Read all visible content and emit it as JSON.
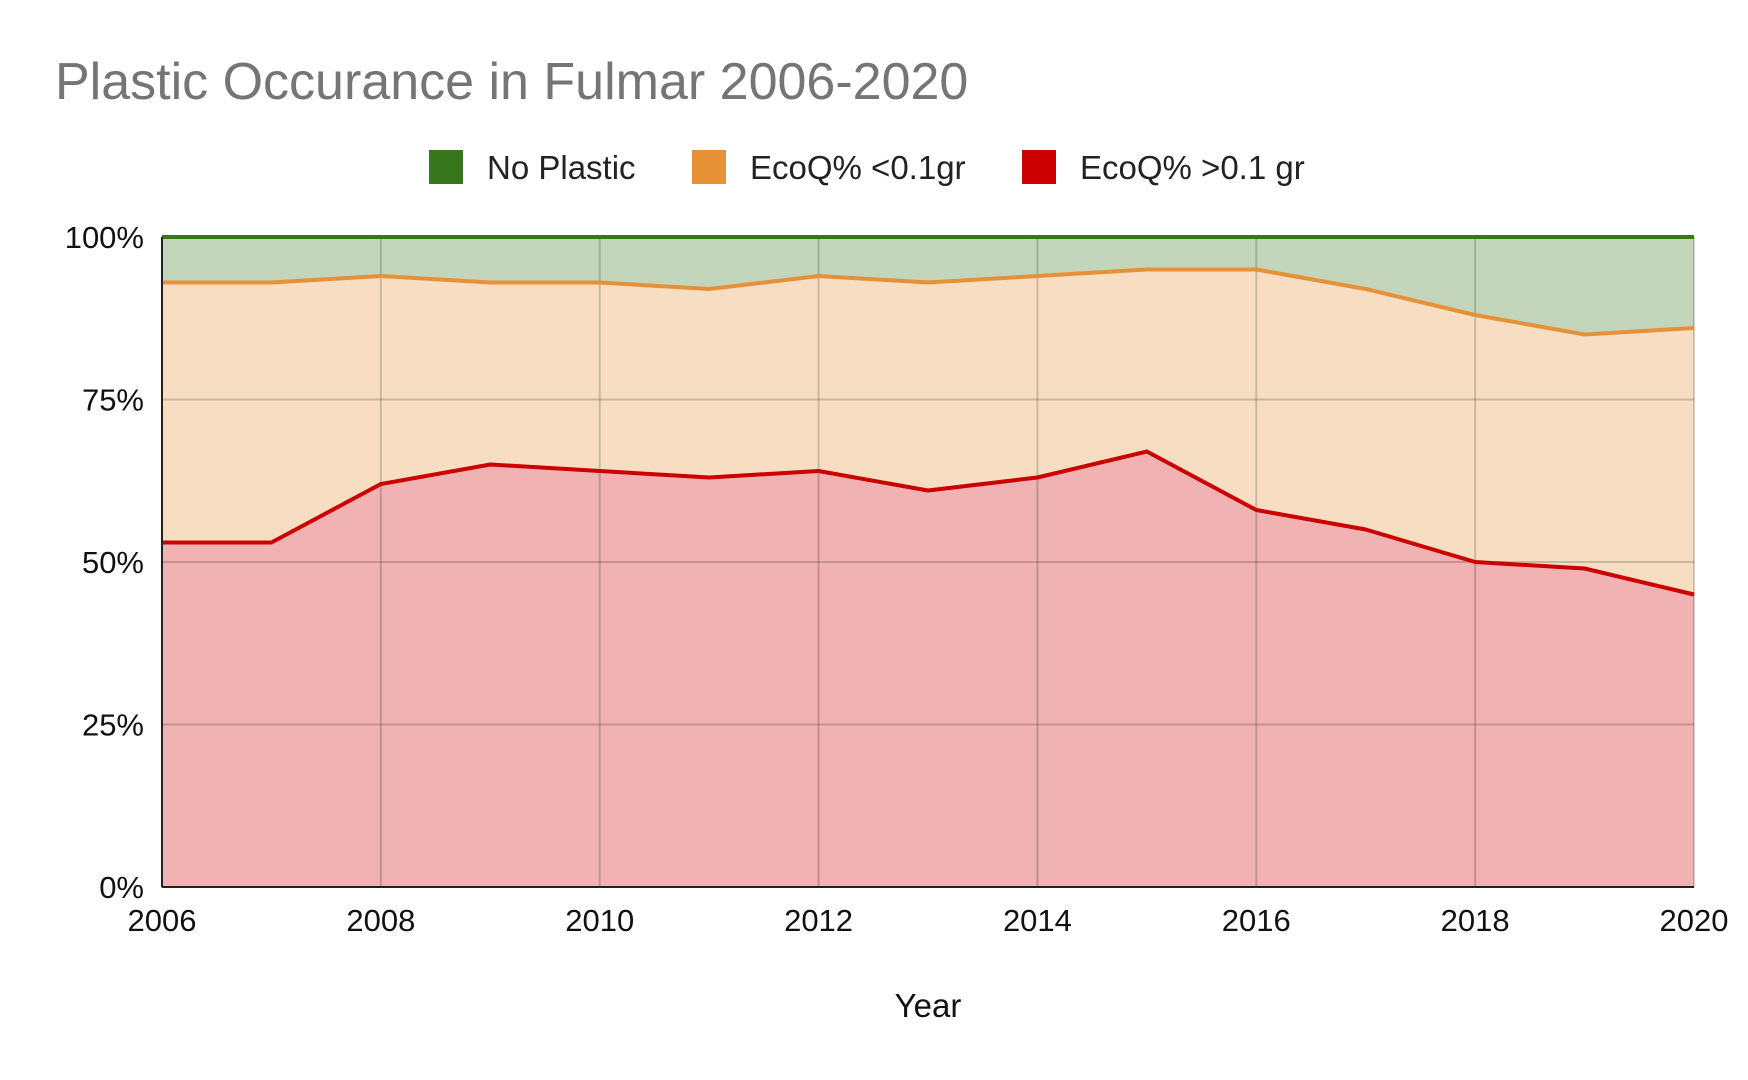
{
  "chart_data": {
    "type": "area",
    "stacked": true,
    "title": "Plastic Occurance in Fulmar 2006-2020",
    "xlabel": "Year",
    "ylabel": "",
    "x": [
      2006,
      2007,
      2008,
      2009,
      2010,
      2011,
      2012,
      2013,
      2014,
      2015,
      2016,
      2017,
      2018,
      2019,
      2020
    ],
    "xticks": [
      "2006",
      "2008",
      "2010",
      "2012",
      "2014",
      "2016",
      "2018",
      "2020"
    ],
    "yticks": [
      "0%",
      "25%",
      "50%",
      "75%",
      "100%"
    ],
    "ylim": [
      0,
      100
    ],
    "grid": true,
    "legend_position": "top",
    "series": [
      {
        "name": "EcoQ% >0.1 gr",
        "color": "#cc0000",
        "values": [
          53,
          53,
          62,
          65,
          64,
          63,
          64,
          61,
          63,
          67,
          58,
          55,
          50,
          49,
          45
        ]
      },
      {
        "name": "EcoQ% <0.1gr",
        "color": "#e69138",
        "values": [
          40,
          40,
          32,
          28,
          29,
          29,
          30,
          32,
          31,
          28,
          37,
          37,
          38,
          36,
          41
        ]
      },
      {
        "name": "No Plastic",
        "color": "#38761d",
        "values": [
          7,
          7,
          6,
          7,
          7,
          8,
          6,
          7,
          6,
          5,
          5,
          8,
          12,
          15,
          14
        ]
      }
    ],
    "legend": [
      {
        "name": "No Plastic",
        "color": "#38761d"
      },
      {
        "name": "EcoQ% <0.1gr",
        "color": "#e69138"
      },
      {
        "name": "EcoQ% >0.1 gr",
        "color": "#cc0000"
      }
    ]
  }
}
